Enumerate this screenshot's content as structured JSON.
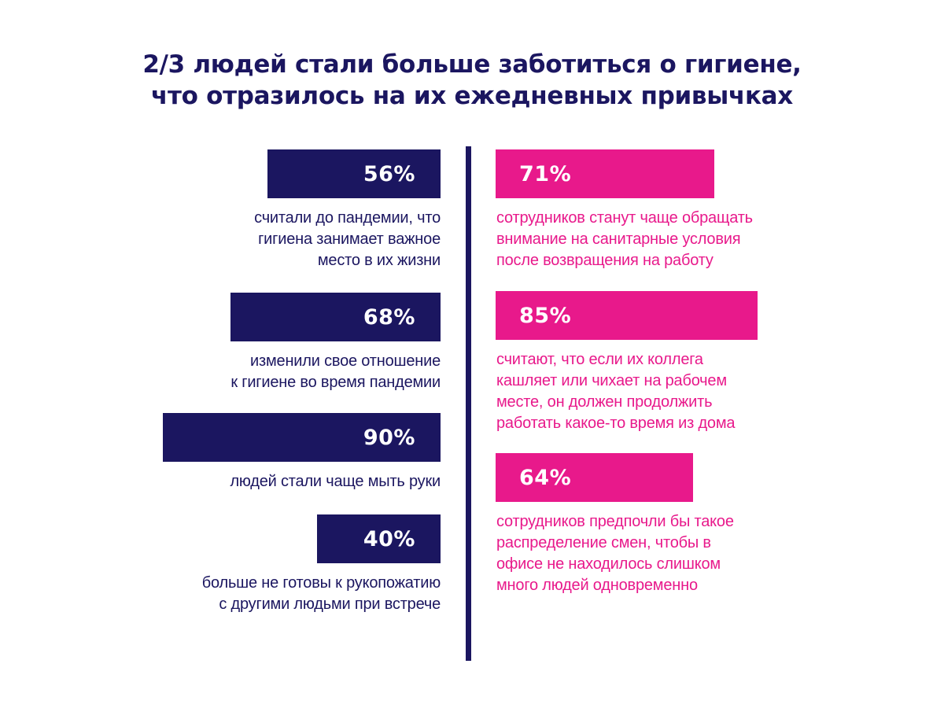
{
  "title": {
    "line1": "2/3 людей стали больше заботиться о гигиене,",
    "line2": "что отразилось на их ежедневных привычках"
  },
  "colors": {
    "left": "#1b1660",
    "right": "#e8198b"
  },
  "chart_data": {
    "type": "bar",
    "title": "2/3 людей стали больше заботиться о гигиене, что отразилось на их ежедневных привычках",
    "unit": "%",
    "left": [
      {
        "value": 56,
        "label": "56%",
        "desc": [
          "считали до пандемии, что",
          "гигиена занимает важное",
          "место в их жизни"
        ]
      },
      {
        "value": 68,
        "label": "68%",
        "desc": [
          "изменили свое отношение",
          "к гигиене во время пандемии"
        ]
      },
      {
        "value": 90,
        "label": "90%",
        "desc": [
          "людей стали чаще мыть руки"
        ]
      },
      {
        "value": 40,
        "label": "40%",
        "desc": [
          "больше не готовы к рукопожатию",
          "с другими людьми при встрече"
        ]
      }
    ],
    "right": [
      {
        "value": 71,
        "label": "71%",
        "desc": [
          "сотрудников станут чаще обращать",
          "внимание на санитарные условия",
          "после возвращения на работу"
        ]
      },
      {
        "value": 85,
        "label": "85%",
        "desc": [
          "считают, что если их коллега",
          "кашляет или чихает на рабочем",
          "месте, он должен продолжить",
          "работать какое-то время из дома"
        ]
      },
      {
        "value": 64,
        "label": "64%",
        "desc": [
          "сотрудников предпочли бы такое",
          "распределение смен, чтобы в",
          "офисе не находилось слишком",
          "много людей одновременно"
        ]
      }
    ]
  }
}
